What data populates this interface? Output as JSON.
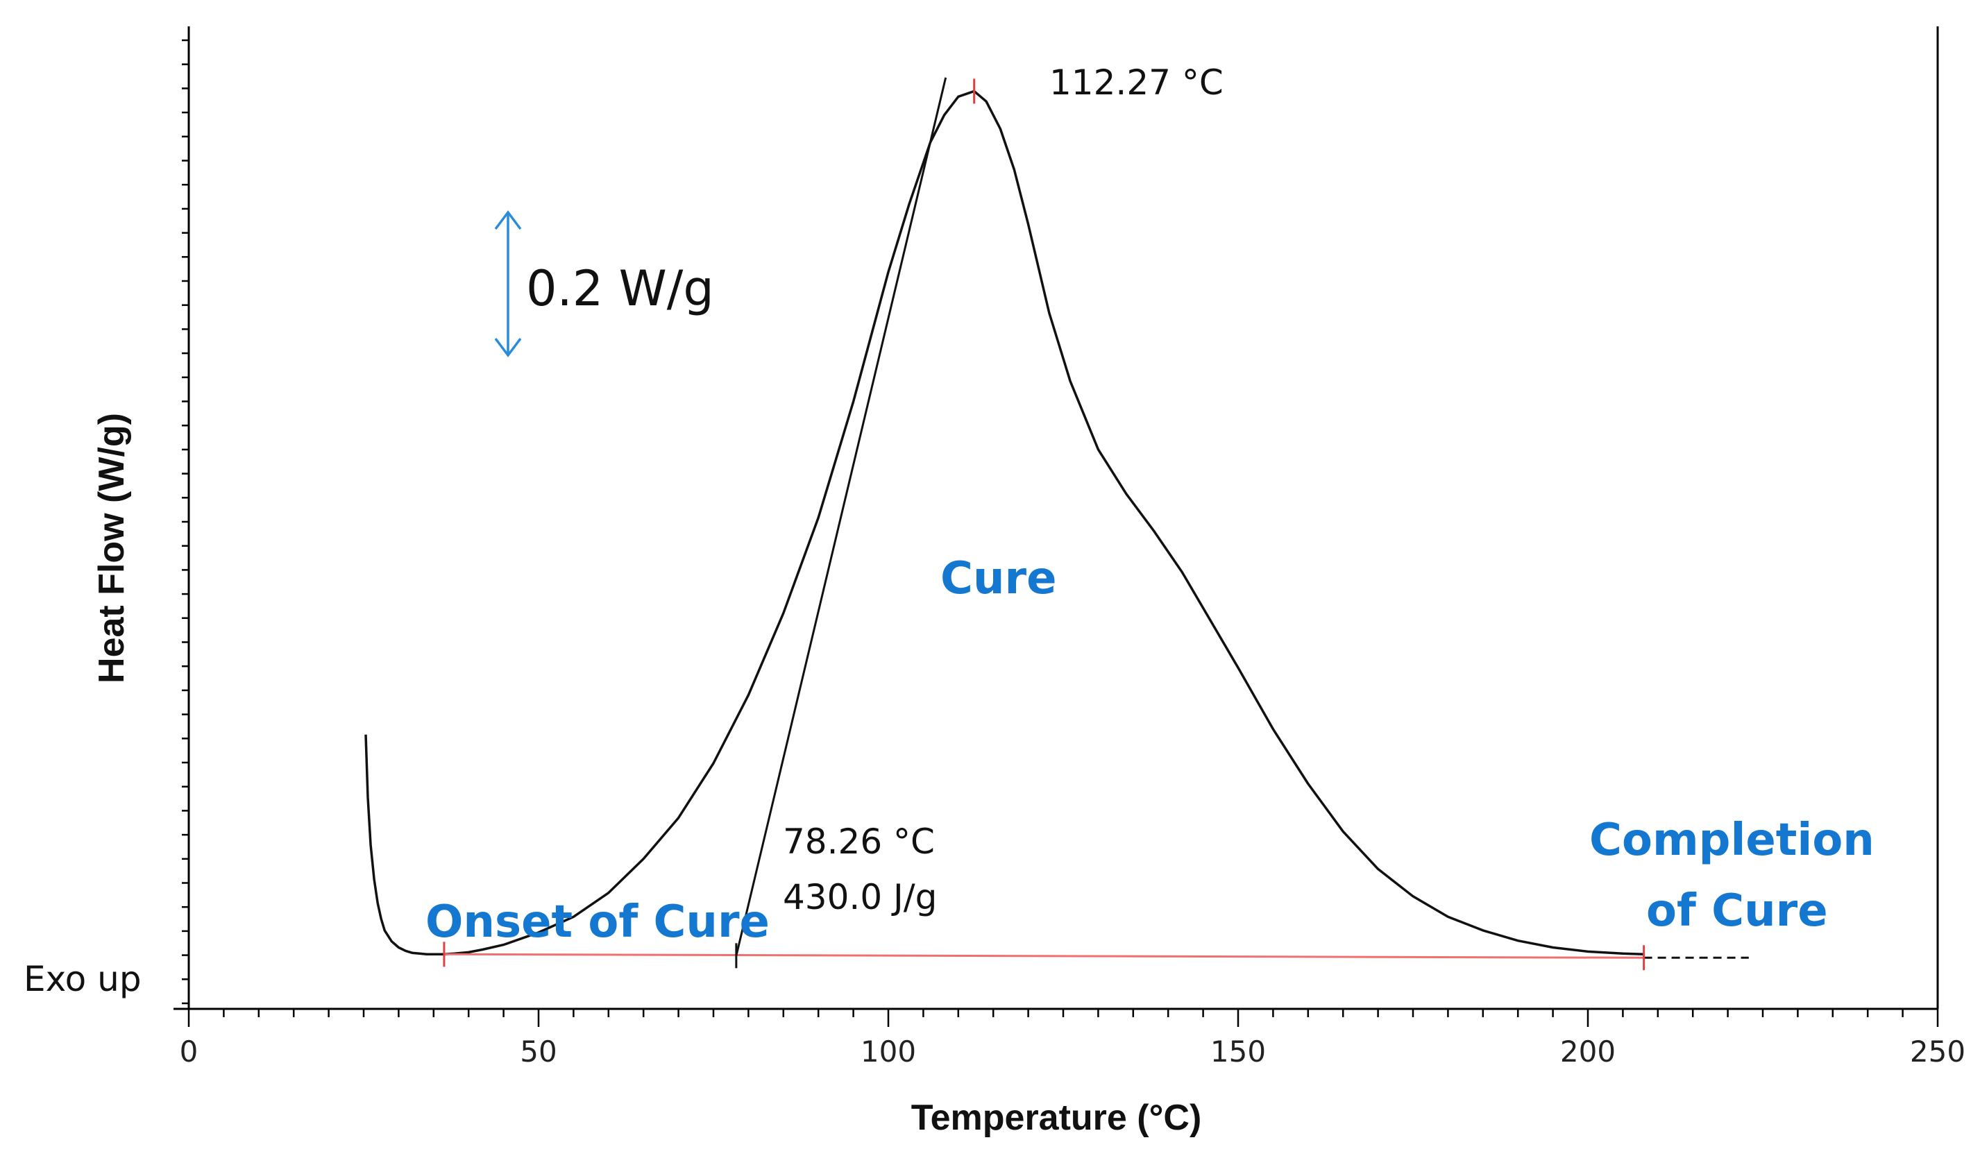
{
  "chart_data": {
    "type": "line",
    "title": "",
    "xlabel": "Temperature (°C)",
    "ylabel": "Heat Flow (W/g)",
    "xlim": [
      0,
      250
    ],
    "ylim": [
      -0.08,
      1.36
    ],
    "x_ticks": [
      0,
      50,
      100,
      150,
      200,
      250
    ],
    "x_tick_labels": [
      "0",
      "50",
      "100",
      "150",
      "200",
      "250"
    ],
    "series": [
      {
        "name": "DSC heat flow",
        "color": "#111111",
        "x": [
          25.3,
          25.6,
          26.0,
          26.5,
          27.0,
          27.5,
          28.0,
          29.0,
          30.0,
          31.0,
          32.0,
          33.0,
          34.0,
          35.0,
          36.5,
          38.0,
          40.0,
          42.0,
          45.0,
          50.0,
          55.0,
          60.0,
          65.0,
          70.0,
          75.0,
          80.0,
          85.0,
          90.0,
          95.0,
          100.0,
          103.0,
          106.0,
          108.0,
          110.0,
          112.27,
          114.0,
          116.0,
          118.0,
          120.0,
          123.0,
          126.0,
          130.0,
          134.0,
          138.0,
          142.0,
          146.0,
          150.0,
          155.0,
          160.0,
          165.0,
          170.0,
          175.0,
          180.0,
          185.0,
          190.0,
          195.0,
          200.0,
          205.0,
          208.0
        ],
        "y": [
          0.322,
          0.23,
          0.16,
          0.11,
          0.075,
          0.052,
          0.035,
          0.019,
          0.01,
          0.005,
          0.002,
          0.001,
          0.0,
          0.0,
          0.0,
          0.001,
          0.003,
          0.007,
          0.014,
          0.032,
          0.055,
          0.09,
          0.14,
          0.2,
          0.28,
          0.38,
          0.5,
          0.64,
          0.81,
          1.0,
          1.1,
          1.19,
          1.23,
          1.257,
          1.265,
          1.25,
          1.21,
          1.15,
          1.07,
          0.94,
          0.84,
          0.74,
          0.675,
          0.62,
          0.56,
          0.49,
          0.42,
          0.33,
          0.25,
          0.18,
          0.125,
          0.085,
          0.055,
          0.035,
          0.02,
          0.01,
          0.004,
          0.001,
          0.0
        ]
      },
      {
        "name": "baseline",
        "color": "#f07070",
        "x": [
          36.5,
          208.0
        ],
        "y": [
          0.0,
          -0.005
        ]
      },
      {
        "name": "onset tangent",
        "color": "#111111",
        "x": [
          78.26,
          108.2
        ],
        "y": [
          -0.002,
          1.285
        ]
      },
      {
        "name": "baseline extension",
        "color": "#111111",
        "x": [
          208.0,
          223.0
        ],
        "y": [
          -0.005,
          -0.005
        ]
      }
    ],
    "markers": [
      {
        "name": "onset-start",
        "x": 36.5,
        "y": 0.0,
        "color": "#e04040"
      },
      {
        "name": "peak",
        "x": 112.27,
        "y": 1.265,
        "color": "#e04040"
      },
      {
        "name": "completion",
        "x": 208.0,
        "y": -0.005,
        "color": "#e04040"
      },
      {
        "name": "onset-intersection",
        "x": 78.26,
        "y": -0.002,
        "color": "#111111"
      }
    ],
    "annotations": {
      "peak_temp": "112.27 °C",
      "onset_temp": "78.26 °C",
      "enthalpy": "430.0 J/g",
      "scale_bar": "0.2 W/g",
      "exo": "Exo up",
      "cure": "Cure",
      "onset_label": "Onset of Cure",
      "completion_line1": "Completion",
      "completion_line2": "of Cure"
    },
    "colors": {
      "label_blue": "#1477d0",
      "baseline_red": "#f07070",
      "marker_red": "#e04040"
    }
  }
}
